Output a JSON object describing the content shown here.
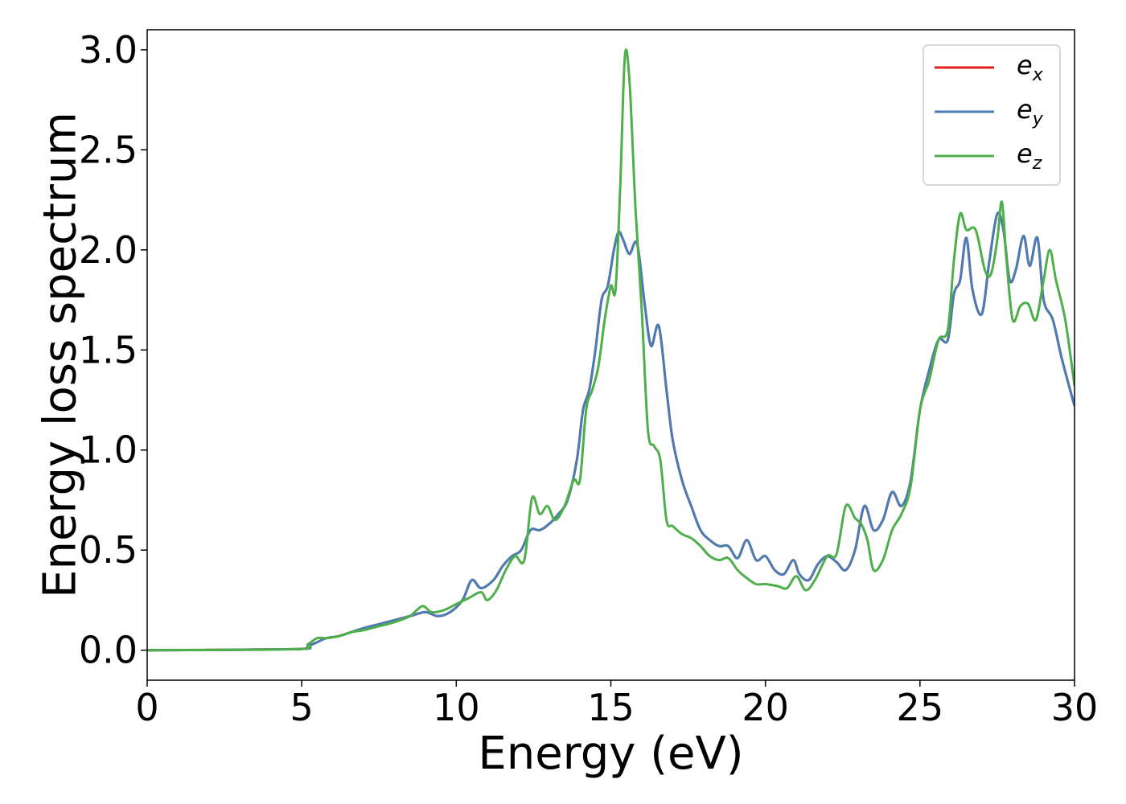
{
  "chart_data": {
    "type": "line",
    "title": "",
    "xlabel": "Energy (eV)",
    "ylabel": "Energy loss spectrum",
    "xlim": [
      0,
      30
    ],
    "ylim": [
      -0.15,
      3.1
    ],
    "xticks": [
      0,
      5,
      10,
      15,
      20,
      25,
      30
    ],
    "xtick_labels": [
      "0",
      "5",
      "10",
      "15",
      "20",
      "25",
      "30"
    ],
    "yticks": [
      0.0,
      0.5,
      1.0,
      1.5,
      2.0,
      2.5,
      3.0
    ],
    "ytick_labels": [
      "0.0",
      "0.5",
      "1.0",
      "1.5",
      "2.0",
      "2.5",
      "3.0"
    ],
    "grid": false,
    "legend_position": "top-right",
    "series": [
      {
        "name": "e_x",
        "label_base": "e",
        "label_sub": "x",
        "color": "#e41a1c",
        "x": [
          0,
          4.8,
          5.2,
          5.5,
          5.8,
          6.2,
          6.6,
          7.0,
          7.5,
          8.0,
          8.5,
          9.0,
          9.4,
          9.8,
          10.2,
          10.5,
          10.8,
          11.2,
          11.5,
          11.8,
          12.1,
          12.4,
          12.7,
          13.0,
          13.3,
          13.6,
          13.9,
          14.1,
          14.3,
          14.5,
          14.7,
          14.9,
          15.1,
          15.25,
          15.4,
          15.6,
          15.85,
          16.1,
          16.3,
          16.55,
          16.8,
          17.0,
          17.3,
          17.6,
          17.9,
          18.2,
          18.5,
          18.8,
          19.1,
          19.4,
          19.7,
          20.0,
          20.3,
          20.6,
          20.9,
          21.1,
          21.4,
          21.7,
          22.0,
          22.3,
          22.6,
          22.9,
          23.2,
          23.5,
          23.8,
          24.1,
          24.4,
          24.7,
          25.0,
          25.3,
          25.6,
          25.9,
          26.1,
          26.3,
          26.5,
          26.7,
          27.0,
          27.25,
          27.5,
          27.7,
          27.9,
          28.1,
          28.35,
          28.55,
          28.8,
          29.0,
          29.3,
          29.6,
          30.0
        ],
        "y": [
          0.0,
          0.005,
          0.02,
          0.04,
          0.06,
          0.07,
          0.09,
          0.11,
          0.13,
          0.15,
          0.17,
          0.19,
          0.17,
          0.19,
          0.25,
          0.35,
          0.31,
          0.35,
          0.42,
          0.47,
          0.5,
          0.6,
          0.6,
          0.63,
          0.68,
          0.75,
          0.95,
          1.2,
          1.3,
          1.5,
          1.75,
          1.82,
          2.0,
          2.09,
          2.05,
          1.98,
          2.03,
          1.72,
          1.52,
          1.62,
          1.3,
          1.05,
          0.85,
          0.72,
          0.6,
          0.55,
          0.52,
          0.52,
          0.46,
          0.55,
          0.45,
          0.47,
          0.4,
          0.38,
          0.45,
          0.38,
          0.35,
          0.43,
          0.47,
          0.44,
          0.4,
          0.5,
          0.72,
          0.6,
          0.65,
          0.79,
          0.72,
          0.85,
          1.2,
          1.4,
          1.55,
          1.55,
          1.78,
          1.85,
          2.06,
          1.8,
          1.68,
          1.95,
          2.18,
          2.1,
          1.85,
          1.9,
          2.07,
          1.92,
          2.06,
          1.75,
          1.65,
          1.45,
          1.22
        ]
      },
      {
        "name": "e_y",
        "label_base": "e",
        "label_sub": "y",
        "color": "#4a7db5",
        "x": [
          0,
          4.8,
          5.2,
          5.5,
          5.8,
          6.2,
          6.6,
          7.0,
          7.5,
          8.0,
          8.5,
          9.0,
          9.4,
          9.8,
          10.2,
          10.5,
          10.8,
          11.2,
          11.5,
          11.8,
          12.1,
          12.4,
          12.7,
          13.0,
          13.3,
          13.6,
          13.9,
          14.1,
          14.3,
          14.5,
          14.7,
          14.9,
          15.1,
          15.25,
          15.4,
          15.6,
          15.85,
          16.1,
          16.3,
          16.55,
          16.8,
          17.0,
          17.3,
          17.6,
          17.9,
          18.2,
          18.5,
          18.8,
          19.1,
          19.4,
          19.7,
          20.0,
          20.3,
          20.6,
          20.9,
          21.1,
          21.4,
          21.7,
          22.0,
          22.3,
          22.6,
          22.9,
          23.2,
          23.5,
          23.8,
          24.1,
          24.4,
          24.7,
          25.0,
          25.3,
          25.6,
          25.9,
          26.1,
          26.3,
          26.5,
          26.7,
          27.0,
          27.25,
          27.5,
          27.7,
          27.9,
          28.1,
          28.35,
          28.55,
          28.8,
          29.0,
          29.3,
          29.6,
          30.0
        ],
        "y": [
          0.0,
          0.005,
          0.02,
          0.04,
          0.06,
          0.07,
          0.09,
          0.11,
          0.13,
          0.15,
          0.17,
          0.19,
          0.17,
          0.19,
          0.25,
          0.35,
          0.31,
          0.35,
          0.42,
          0.47,
          0.5,
          0.6,
          0.6,
          0.63,
          0.68,
          0.75,
          0.95,
          1.2,
          1.3,
          1.5,
          1.75,
          1.82,
          2.0,
          2.09,
          2.05,
          1.98,
          2.03,
          1.72,
          1.52,
          1.62,
          1.3,
          1.05,
          0.85,
          0.72,
          0.6,
          0.55,
          0.52,
          0.52,
          0.46,
          0.55,
          0.45,
          0.47,
          0.4,
          0.38,
          0.45,
          0.38,
          0.35,
          0.43,
          0.47,
          0.44,
          0.4,
          0.5,
          0.72,
          0.6,
          0.65,
          0.79,
          0.72,
          0.85,
          1.2,
          1.4,
          1.55,
          1.55,
          1.78,
          1.85,
          2.06,
          1.8,
          1.68,
          1.95,
          2.18,
          2.1,
          1.85,
          1.9,
          2.07,
          1.92,
          2.06,
          1.75,
          1.65,
          1.45,
          1.22
        ]
      },
      {
        "name": "e_z",
        "label_base": "e",
        "label_sub": "z",
        "color": "#4daf4a",
        "x": [
          0,
          4.8,
          5.2,
          5.5,
          5.8,
          6.2,
          6.6,
          7.0,
          7.5,
          8.0,
          8.5,
          8.9,
          9.2,
          9.6,
          10.0,
          10.4,
          10.8,
          11.0,
          11.3,
          11.6,
          11.9,
          12.2,
          12.45,
          12.7,
          12.95,
          13.2,
          13.5,
          13.8,
          14.0,
          14.2,
          14.4,
          14.6,
          14.8,
          15.0,
          15.15,
          15.3,
          15.45,
          15.6,
          15.8,
          16.0,
          16.2,
          16.4,
          16.6,
          16.8,
          17.0,
          17.3,
          17.6,
          17.9,
          18.2,
          18.5,
          18.8,
          19.1,
          19.4,
          19.7,
          20.0,
          20.4,
          20.7,
          21.0,
          21.3,
          21.6,
          22.0,
          22.3,
          22.6,
          22.9,
          23.1,
          23.3,
          23.5,
          23.8,
          24.1,
          24.4,
          24.7,
          25.0,
          25.3,
          25.6,
          25.9,
          26.1,
          26.3,
          26.5,
          26.8,
          27.1,
          27.3,
          27.5,
          27.65,
          27.8,
          28.0,
          28.25,
          28.5,
          28.75,
          29.0,
          29.2,
          29.4,
          29.7,
          30.0
        ],
        "y": [
          0.0,
          0.005,
          0.03,
          0.06,
          0.06,
          0.07,
          0.09,
          0.1,
          0.12,
          0.14,
          0.17,
          0.22,
          0.19,
          0.2,
          0.23,
          0.26,
          0.29,
          0.25,
          0.3,
          0.4,
          0.47,
          0.45,
          0.76,
          0.68,
          0.72,
          0.65,
          0.72,
          0.85,
          0.85,
          1.2,
          1.3,
          1.42,
          1.65,
          1.82,
          1.8,
          2.3,
          2.96,
          2.85,
          2.2,
          1.7,
          1.1,
          1.02,
          0.95,
          0.65,
          0.62,
          0.58,
          0.56,
          0.52,
          0.47,
          0.45,
          0.46,
          0.4,
          0.36,
          0.33,
          0.33,
          0.32,
          0.31,
          0.37,
          0.3,
          0.35,
          0.47,
          0.48,
          0.72,
          0.66,
          0.63,
          0.55,
          0.4,
          0.45,
          0.6,
          0.68,
          0.82,
          1.2,
          1.35,
          1.55,
          1.6,
          1.95,
          2.18,
          2.1,
          2.1,
          1.9,
          1.88,
          2.05,
          2.24,
          1.95,
          1.65,
          1.72,
          1.73,
          1.65,
          1.85,
          2.0,
          1.85,
          1.65,
          1.32
        ]
      }
    ]
  }
}
